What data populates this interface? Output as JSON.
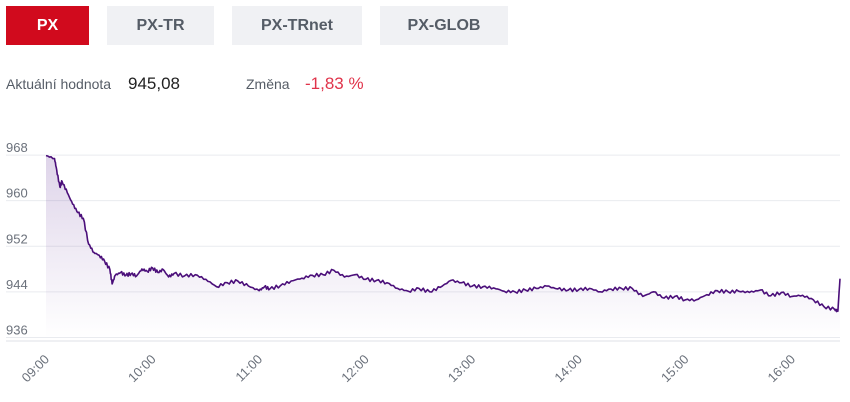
{
  "tabs": [
    {
      "label": "PX",
      "active": true
    },
    {
      "label": "PX-TR",
      "active": false
    },
    {
      "label": "PX-TRnet",
      "active": false
    },
    {
      "label": "PX-GLOB",
      "active": false
    }
  ],
  "info": {
    "current_label": "Aktuální hodnota",
    "current_value": "945,08",
    "change_label": "Změna",
    "change_value": "-1,83 %"
  },
  "colors": {
    "accent": "#d10a1d",
    "line": "#4b0f7a",
    "negative": "#e0334a"
  },
  "chart_data": {
    "type": "line",
    "title": "",
    "xlabel": "",
    "ylabel": "",
    "x_ticks": [
      "09:00",
      "10:00",
      "11:00",
      "12:00",
      "13:00",
      "14:00",
      "15:00",
      "16:00"
    ],
    "y_ticks": [
      968,
      960,
      952,
      944,
      936
    ],
    "ylim": [
      934.5,
      971
    ],
    "xlim_hours": [
      9.0,
      16.45
    ],
    "grid": true,
    "legend": "none",
    "series": [
      {
        "x": [
          9.0,
          9.08,
          9.1,
          9.13,
          9.15,
          9.2,
          9.25,
          9.3,
          9.35,
          9.4,
          9.45,
          9.5,
          9.55,
          9.6,
          9.62,
          9.65,
          9.7,
          9.75,
          9.8,
          9.85,
          9.9,
          9.95,
          10.0,
          10.05,
          10.1,
          10.15,
          10.2,
          10.3,
          10.4,
          10.5,
          10.6,
          10.7,
          10.8,
          10.9,
          11.0,
          11.05,
          11.1,
          11.2,
          11.3,
          11.4,
          11.5,
          11.6,
          11.7,
          11.8,
          11.9,
          12.0,
          12.1,
          12.2,
          12.3,
          12.4,
          12.5,
          12.6,
          12.7,
          12.8,
          12.9,
          13.0,
          13.1,
          13.2,
          13.3,
          13.4,
          13.5,
          13.6,
          13.7,
          13.8,
          13.9,
          14.0,
          14.1,
          14.2,
          14.3,
          14.4,
          14.5,
          14.6,
          14.7,
          14.8,
          14.9,
          15.0,
          15.1,
          15.2,
          15.3,
          15.4,
          15.5,
          15.6,
          15.7,
          15.8,
          15.9,
          16.0,
          16.1,
          16.2,
          16.3,
          16.4,
          16.43,
          16.45
        ],
        "y": [
          966.5,
          966.0,
          964.0,
          961.0,
          962.0,
          960.0,
          958.0,
          956.5,
          955.5,
          951.0,
          949.5,
          949.0,
          948.0,
          946.5,
          944.0,
          945.5,
          946.0,
          945.5,
          945.8,
          945.4,
          946.6,
          946.2,
          946.8,
          946.0,
          946.5,
          945.2,
          945.8,
          945.4,
          945.6,
          944.8,
          943.5,
          944.2,
          944.5,
          943.6,
          942.8,
          943.5,
          943.1,
          943.7,
          944.5,
          945.0,
          945.5,
          945.6,
          946.4,
          945.2,
          945.6,
          944.8,
          944.6,
          944.2,
          943.2,
          942.7,
          943.2,
          942.6,
          943.4,
          944.6,
          944.2,
          943.6,
          943.5,
          943.3,
          942.7,
          942.6,
          942.9,
          943.2,
          943.6,
          943.1,
          942.9,
          943.0,
          943.2,
          942.6,
          943.1,
          943.2,
          943.2,
          941.8,
          942.6,
          941.5,
          941.8,
          941.2,
          941.2,
          942.1,
          942.8,
          942.6,
          942.7,
          942.5,
          942.9,
          941.9,
          942.5,
          941.8,
          942.0,
          941.2,
          940.0,
          939.5,
          939.2,
          944.9
        ]
      }
    ]
  }
}
